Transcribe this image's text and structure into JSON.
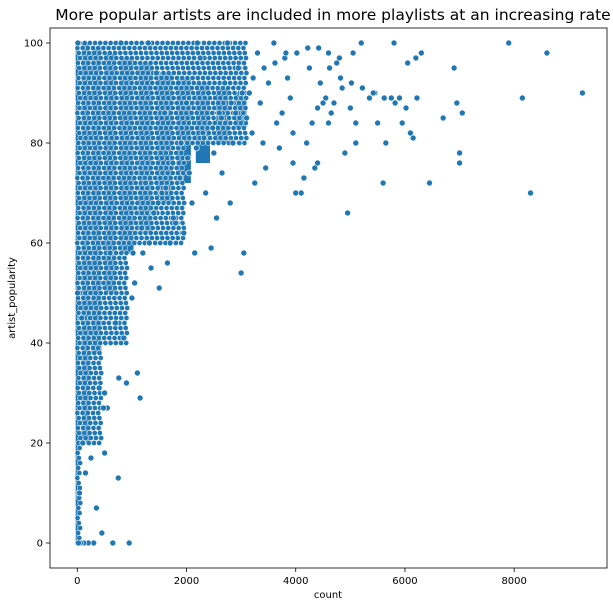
{
  "chart_data": {
    "type": "scatter",
    "title": "More popular artists are included in more playlists at an increasing rate",
    "xlabel": "count",
    "ylabel": "artist_popularity",
    "xlim": [
      -500,
      9700
    ],
    "ylim": [
      -5,
      103
    ],
    "xticks": [
      0,
      2000,
      4000,
      6000,
      8000
    ],
    "yticks": [
      0,
      20,
      40,
      60,
      80,
      100
    ],
    "xtick_labels": [
      "0",
      "2000",
      "4000",
      "6000",
      "8000"
    ],
    "ytick_labels": [
      "0",
      "20",
      "40",
      "60",
      "80",
      "100"
    ],
    "grid": false,
    "legend": "none",
    "marker_color": "#1f77b4",
    "marker_edge_color": "#ffffff",
    "series": [
      {
        "points": [
          [
            9250,
            90
          ],
          [
            8600,
            98
          ],
          [
            8300,
            70
          ],
          [
            8150,
            89
          ],
          [
            7900,
            100
          ],
          [
            7050,
            86
          ],
          [
            7000,
            78
          ],
          [
            7000,
            76
          ],
          [
            6950,
            88
          ],
          [
            6900,
            95
          ],
          [
            6700,
            85
          ],
          [
            6450,
            72
          ],
          [
            6300,
            98
          ],
          [
            6200,
            97
          ],
          [
            6150,
            81
          ],
          [
            6100,
            82
          ],
          [
            6050,
            96
          ],
          [
            5950,
            84
          ],
          [
            5900,
            89
          ],
          [
            5800,
            100
          ],
          [
            5750,
            89
          ],
          [
            5650,
            80
          ],
          [
            5600,
            72
          ],
          [
            5500,
            84
          ],
          [
            5450,
            90
          ],
          [
            5350,
            89
          ],
          [
            5200,
            100
          ],
          [
            5100,
            84
          ],
          [
            5100,
            80
          ],
          [
            5050,
            98
          ],
          [
            5000,
            87
          ],
          [
            4950,
            66
          ],
          [
            4900,
            78
          ],
          [
            4850,
            91
          ],
          [
            4800,
            97
          ],
          [
            4750,
            96
          ],
          [
            4700,
            88
          ],
          [
            4650,
            86
          ],
          [
            4600,
            84
          ],
          [
            4600,
            98
          ],
          [
            4550,
            89
          ],
          [
            4500,
            88
          ],
          [
            4450,
            92
          ],
          [
            4400,
            87
          ],
          [
            4400,
            76
          ],
          [
            4350,
            75
          ],
          [
            4300,
            84
          ],
          [
            4250,
            95
          ],
          [
            4200,
            80
          ],
          [
            4150,
            73
          ],
          [
            4100,
            70
          ],
          [
            4000,
            70
          ],
          [
            3950,
            76
          ],
          [
            3950,
            82
          ],
          [
            3900,
            89
          ],
          [
            3850,
            93
          ],
          [
            3800,
            97
          ],
          [
            3750,
            86
          ],
          [
            3700,
            79
          ],
          [
            3650,
            84
          ],
          [
            3600,
            100
          ],
          [
            3500,
            92
          ],
          [
            3450,
            75
          ],
          [
            3400,
            80
          ],
          [
            3350,
            88
          ],
          [
            3300,
            98
          ],
          [
            3250,
            72
          ],
          [
            3200,
            82
          ],
          [
            3150,
            90
          ],
          [
            3100,
            85
          ],
          [
            3050,
            58
          ],
          [
            3000,
            54
          ],
          [
            2950,
            95
          ],
          [
            2900,
            86
          ],
          [
            2850,
            80
          ],
          [
            2800,
            68
          ],
          [
            2750,
            100
          ],
          [
            2700,
            92
          ],
          [
            2650,
            74
          ],
          [
            2600,
            86
          ],
          [
            2550,
            65
          ],
          [
            2500,
            78
          ],
          [
            2450,
            59
          ],
          [
            2400,
            90
          ],
          [
            2350,
            70
          ],
          [
            2300,
            82
          ],
          [
            2250,
            97
          ],
          [
            2200,
            100
          ],
          [
            2150,
            58
          ],
          [
            2100,
            68
          ],
          [
            2050,
            74
          ],
          [
            2000,
            88
          ],
          [
            1950,
            62
          ],
          [
            1900,
            80
          ],
          [
            1850,
            92
          ],
          [
            1800,
            64
          ],
          [
            1750,
            76
          ],
          [
            1700,
            60
          ],
          [
            1650,
            56
          ],
          [
            1600,
            86
          ],
          [
            1550,
            70
          ],
          [
            1500,
            51
          ],
          [
            1450,
            94
          ],
          [
            1400,
            66
          ],
          [
            1350,
            55
          ],
          [
            1300,
            100
          ],
          [
            1250,
            72
          ],
          [
            1200,
            58
          ],
          [
            1150,
            29
          ],
          [
            1100,
            34
          ],
          [
            1050,
            52
          ],
          [
            1000,
            49
          ],
          [
            950,
            0
          ],
          [
            900,
            32
          ],
          [
            850,
            41
          ],
          [
            800,
            100
          ],
          [
            750,
            13
          ],
          [
            700,
            44
          ],
          [
            650,
            0
          ],
          [
            600,
            58
          ],
          [
            550,
            27
          ],
          [
            500,
            18
          ],
          [
            450,
            2
          ],
          [
            400,
            31
          ],
          [
            350,
            7
          ],
          [
            300,
            0
          ],
          [
            250,
            17
          ],
          [
            200,
            0
          ],
          [
            150,
            14
          ],
          [
            120,
            0
          ],
          [
            100,
            20
          ],
          [
            80,
            45
          ],
          [
            60,
            0
          ],
          [
            40,
            10
          ],
          [
            20,
            0
          ],
          [
            10,
            100
          ],
          [
            5,
            50
          ],
          [
            500,
            30
          ],
          [
            480,
            27
          ],
          [
            760,
            33
          ],
          [
            1020,
            58
          ],
          [
            1180,
            63
          ],
          [
            1320,
            60
          ],
          [
            1480,
            68
          ],
          [
            1620,
            71
          ],
          [
            1760,
            65
          ],
          [
            1880,
            73
          ],
          [
            2020,
            77
          ],
          [
            2180,
            79
          ],
          [
            2320,
            81
          ],
          [
            2480,
            83
          ],
          [
            2640,
            85
          ],
          [
            2820,
            88
          ],
          [
            3020,
            90
          ],
          [
            3220,
            93
          ],
          [
            3420,
            95
          ],
          [
            3620,
            96
          ],
          [
            3820,
            98
          ],
          [
            4020,
            98
          ],
          [
            4220,
            99
          ],
          [
            4420,
            99
          ],
          [
            4620,
            95
          ],
          [
            4820,
            93
          ],
          [
            5020,
            92
          ],
          [
            5220,
            91
          ],
          [
            5420,
            90
          ],
          [
            5620,
            89
          ],
          [
            5820,
            88
          ],
          [
            6020,
            87
          ],
          [
            6220,
            89
          ]
        ]
      }
    ]
  }
}
